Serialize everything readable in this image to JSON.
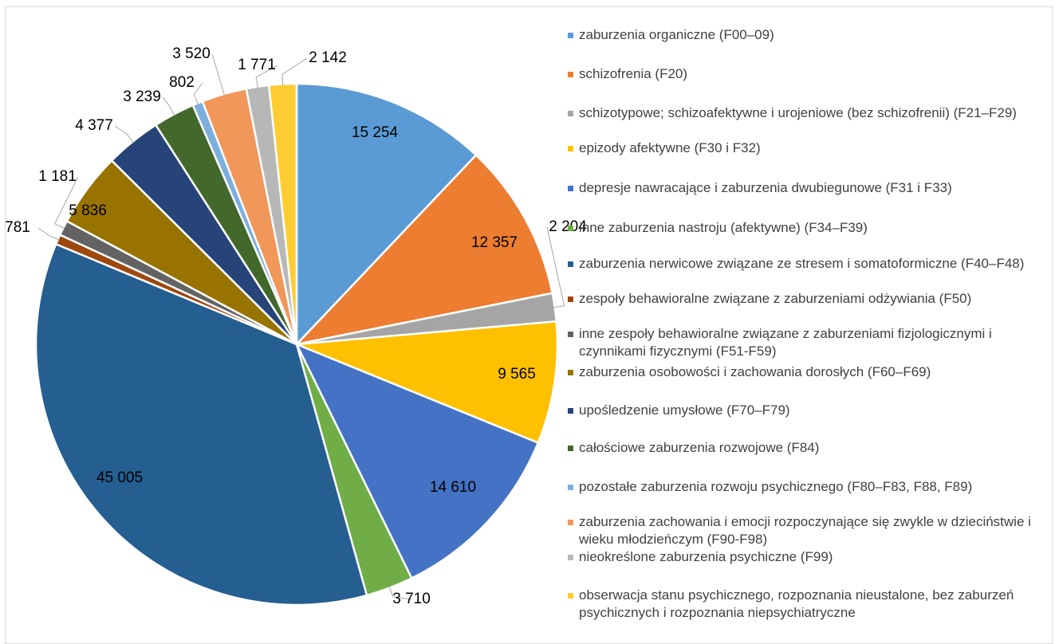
{
  "chart_data": {
    "type": "pie",
    "categories": [
      "zaburzenia organiczne (F00–09)",
      "schizofrenia (F20)",
      "schizotypowe; schizoafektywne i urojeniowe (bez schizofrenii) (F21–F29)",
      "epizody afektywne (F30 i F32)",
      "depresje nawracające i zaburzenia dwubiegunowe (F31 i F33)",
      "inne zaburzenia nastroju (afektywne) (F34–F39)",
      "zaburzenia nerwicowe związane ze stresem i somatoformiczne (F40–F48)",
      "zespoły behawioralne związane z zaburzeniami odżywiania (F50)",
      "inne zespoły behawioralne związane z zaburzeniami fizjologicznymi i czynnikami fizycznymi (F51-F59)",
      "zaburzenia osobowości i zachowania dorosłych (F60–F69)",
      "upośledzenie umysłowe (F70–F79)",
      "całościowe zaburzenia rozwojowe (F84)",
      "pozostałe zaburzenia rozwoju psychicznego (F80–F83, F88, F89)",
      "zaburzenia zachowania i emocji rozpoczynające się zwykle w dzieciństwie i wieku młodzieńczym (F90-F98)",
      "nieokreślone zaburzenia psychiczne (F99)",
      "obserwacja stanu psychicznego, rozpoznania nieustalone, bez zaburzeń psychicznych i rozpoznania niepsychiatryczne"
    ],
    "values": [
      15254,
      12357,
      2204,
      9565,
      14610,
      3710,
      45005,
      781,
      1181,
      5836,
      4377,
      3239,
      802,
      3520,
      1771,
      2142
    ],
    "value_labels": [
      "15 254",
      "12 357",
      "2 204",
      "9 565",
      "14 610",
      "3 710",
      "45 005",
      "781",
      "1 181",
      "5 836",
      "4 377",
      "3 239",
      "802",
      "3 520",
      "1 771",
      "2 142"
    ],
    "colors": [
      "#5b9bd5",
      "#ed7d31",
      "#a5a5a5",
      "#ffc000",
      "#4472c4",
      "#70ad47",
      "#255e91",
      "#9e480e",
      "#636363",
      "#997300",
      "#264478",
      "#43682b",
      "#7cafdd",
      "#f1975a",
      "#b7b7b7",
      "#ffcd33"
    ],
    "legend": "right"
  }
}
